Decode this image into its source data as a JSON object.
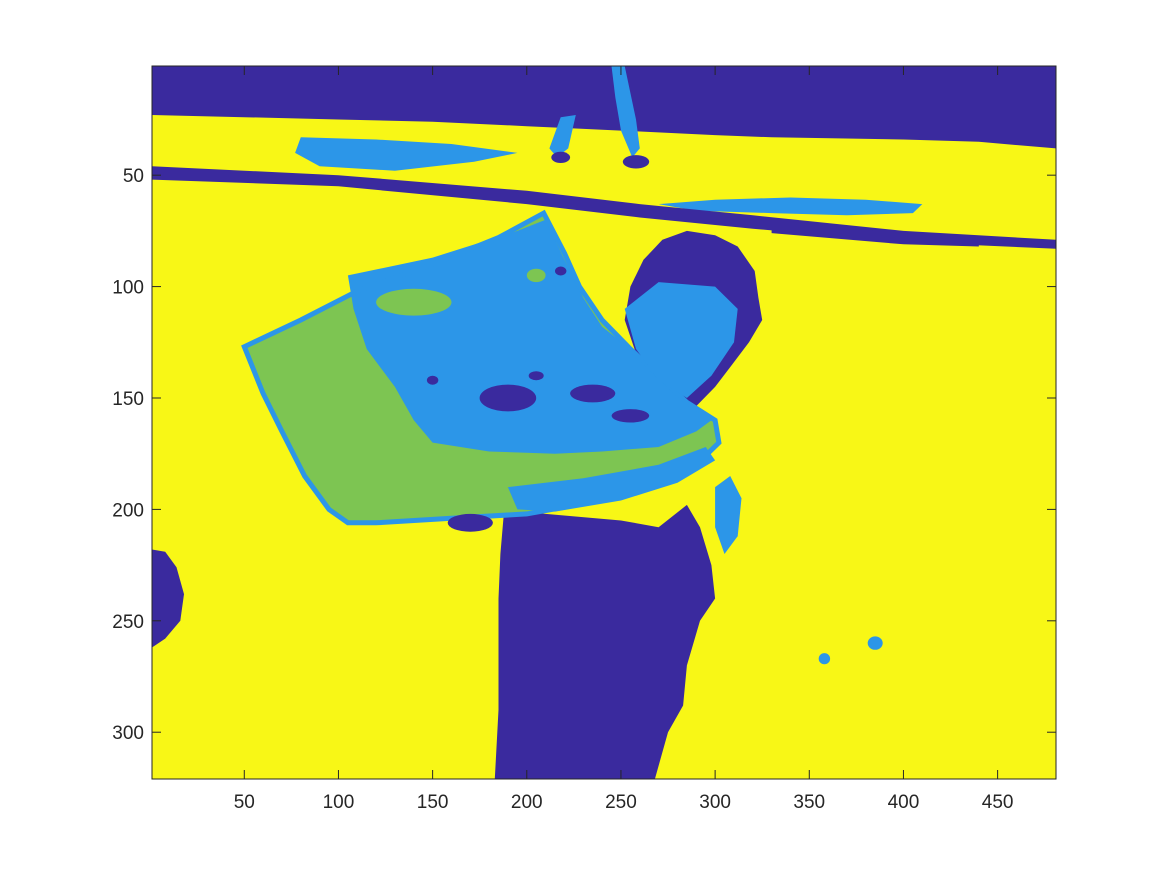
{
  "chart_data": {
    "type": "heatmap",
    "title": "",
    "xlabel": "",
    "ylabel": "",
    "xlim": [
      1,
      481
    ],
    "ylim": [
      1,
      321
    ],
    "y_reversed": true,
    "x_ticks": [
      50,
      100,
      150,
      200,
      250,
      300,
      350,
      400,
      450
    ],
    "y_ticks": [
      50,
      100,
      150,
      200,
      250,
      300
    ],
    "colors": {
      "class_1": "#3a2a9e",
      "class_2": "#2c96e8",
      "class_3": "#7dc552",
      "class_4": "#f8f716"
    },
    "regions": [
      {
        "class": "class_4",
        "label": "background"
      },
      {
        "class": "class_1",
        "label": "top band"
      },
      {
        "class": "class_1",
        "label": "diagonal stripe"
      },
      {
        "class": "class_1",
        "label": "figure / head and body"
      },
      {
        "class": "class_3",
        "label": "large sheet"
      },
      {
        "class": "class_2",
        "label": "sheet interior and edges"
      }
    ]
  }
}
